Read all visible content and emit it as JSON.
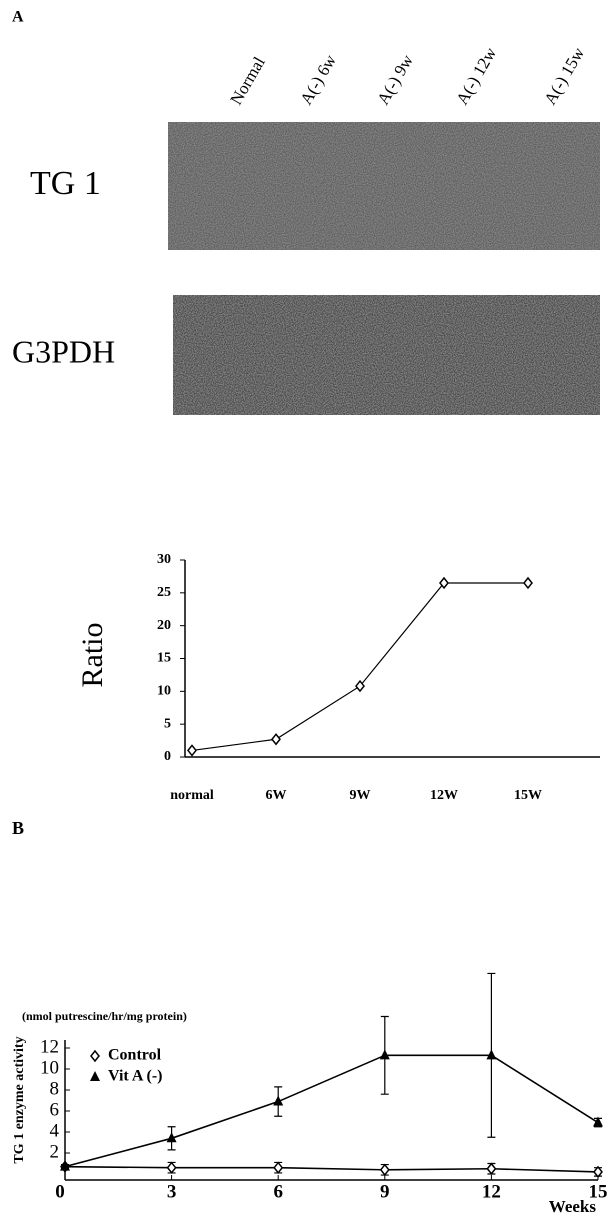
{
  "panel_a": {
    "label": "A",
    "lanes": [
      "Normal",
      "A(-) 6w",
      "A(-) 9w",
      "A(-) 12w",
      "A(-) 15w"
    ],
    "blots": [
      "TG 1",
      "G3PDH"
    ]
  },
  "chart_data": [
    {
      "type": "line",
      "ylabel": "Ratio",
      "categories": [
        "normal",
        "6W",
        "9W",
        "12W",
        "15W"
      ],
      "values": [
        1,
        2.7,
        10.8,
        26.5,
        26.5
      ],
      "color": "#000000",
      "ylim": [
        0,
        30
      ],
      "yticks": [
        0,
        5,
        10,
        15,
        20,
        25,
        30
      ]
    },
    {
      "type": "errorline",
      "panel_label": "B",
      "units": "(nmol putrescine/hr/mg protein)",
      "ylabel": "TG 1 enzyme activity",
      "xlabel": "Weeks",
      "x": [
        0,
        3,
        6,
        9,
        12,
        15
      ],
      "xlim": [
        0,
        15
      ],
      "xticks": [
        0,
        3,
        6,
        9,
        12,
        15
      ],
      "ylim": [
        0,
        12
      ],
      "yticks": [
        2,
        4,
        6,
        8,
        10,
        12
      ],
      "legend": "upper left",
      "series": [
        {
          "name": "Control",
          "color": "#000000",
          "marker": "diamond",
          "values": [
            0.7,
            0.6,
            0.6,
            0.4,
            0.5,
            0.2
          ],
          "errors": [
            0.2,
            0.5,
            0.5,
            0.5,
            0.5,
            0.4
          ]
        },
        {
          "name": "Vit A (-)",
          "color": "#000000",
          "marker": "triangle",
          "values": [
            0.7,
            3.4,
            6.9,
            11.3,
            11.3,
            4.9
          ],
          "errors": [
            0.2,
            1.1,
            1.4,
            3.7,
            7.8,
            0.4
          ]
        }
      ]
    }
  ]
}
